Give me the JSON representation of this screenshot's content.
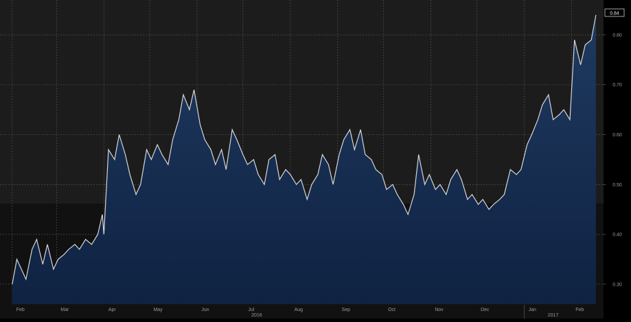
{
  "chart_data": {
    "type": "area",
    "title": "",
    "xlabel": "",
    "ylabel": "",
    "ylim": [
      0.26,
      0.87
    ],
    "grid": true,
    "yticks": [
      0.3,
      0.4,
      0.5,
      0.6,
      0.7,
      0.8
    ],
    "ytick_labels": [
      "0.30",
      "0.40",
      "0.50",
      "0.60",
      "0.70",
      "0.80"
    ],
    "last_value_label": "0.84",
    "last_value": 0.84,
    "month_labels": [
      "Feb",
      "Mar",
      "Apr",
      "May",
      "Jun",
      "Jul",
      "Aug",
      "Sep",
      "Oct",
      "Nov",
      "Dec",
      "Jan",
      "Feb"
    ],
    "year_labels": [
      "2016",
      "2017"
    ],
    "series": [
      {
        "x": [
          "2016-02-01",
          "2016-02-04",
          "2016-02-07",
          "2016-02-10",
          "2016-02-14",
          "2016-02-17",
          "2016-02-21",
          "2016-02-24",
          "2016-02-28",
          "2016-03-02",
          "2016-03-06",
          "2016-03-09",
          "2016-03-13",
          "2016-03-16",
          "2016-03-20",
          "2016-03-24",
          "2016-03-28",
          "2016-03-31",
          "2016-04-01",
          "2016-04-04",
          "2016-04-08",
          "2016-04-11",
          "2016-04-15",
          "2016-04-18",
          "2016-04-22",
          "2016-04-25",
          "2016-04-29",
          "2016-05-02",
          "2016-05-06",
          "2016-05-09",
          "2016-05-13",
          "2016-05-16",
          "2016-05-20",
          "2016-05-23",
          "2016-05-27",
          "2016-05-30",
          "2016-06-03",
          "2016-06-06",
          "2016-06-10",
          "2016-06-13",
          "2016-06-17",
          "2016-06-20",
          "2016-06-24",
          "2016-06-27",
          "2016-07-01",
          "2016-07-04",
          "2016-07-08",
          "2016-07-11",
          "2016-07-15",
          "2016-07-18",
          "2016-07-22",
          "2016-07-25",
          "2016-07-29",
          "2016-08-01",
          "2016-08-05",
          "2016-08-08",
          "2016-08-12",
          "2016-08-15",
          "2016-08-19",
          "2016-08-22",
          "2016-08-26",
          "2016-08-29",
          "2016-09-02",
          "2016-09-05",
          "2016-09-09",
          "2016-09-12",
          "2016-09-16",
          "2016-09-19",
          "2016-09-23",
          "2016-09-26",
          "2016-09-30",
          "2016-10-03",
          "2016-10-07",
          "2016-10-10",
          "2016-10-14",
          "2016-10-17",
          "2016-10-21",
          "2016-10-24",
          "2016-10-28",
          "2016-10-31",
          "2016-11-04",
          "2016-11-07",
          "2016-11-11",
          "2016-11-14",
          "2016-11-18",
          "2016-11-21",
          "2016-11-25",
          "2016-11-28",
          "2016-12-02",
          "2016-12-05",
          "2016-12-09",
          "2016-12-12",
          "2016-12-16",
          "2016-12-19",
          "2016-12-23",
          "2016-12-27",
          "2016-12-30",
          "2017-01-03",
          "2017-01-06",
          "2017-01-10",
          "2017-01-13",
          "2017-01-17",
          "2017-01-20",
          "2017-01-24",
          "2017-01-27",
          "2017-01-31",
          "2017-02-03",
          "2017-02-07",
          "2017-02-10",
          "2017-02-14",
          "2017-02-17"
        ],
        "values": [
          0.3,
          0.35,
          0.33,
          0.31,
          0.37,
          0.39,
          0.34,
          0.38,
          0.33,
          0.35,
          0.36,
          0.37,
          0.38,
          0.37,
          0.39,
          0.38,
          0.4,
          0.44,
          0.4,
          0.57,
          0.55,
          0.6,
          0.56,
          0.52,
          0.48,
          0.5,
          0.57,
          0.55,
          0.58,
          0.56,
          0.54,
          0.59,
          0.63,
          0.68,
          0.65,
          0.69,
          0.62,
          0.59,
          0.57,
          0.54,
          0.57,
          0.53,
          0.61,
          0.59,
          0.56,
          0.54,
          0.55,
          0.52,
          0.5,
          0.55,
          0.56,
          0.51,
          0.53,
          0.52,
          0.5,
          0.51,
          0.47,
          0.5,
          0.52,
          0.56,
          0.54,
          0.5,
          0.56,
          0.59,
          0.61,
          0.57,
          0.61,
          0.56,
          0.55,
          0.53,
          0.52,
          0.49,
          0.5,
          0.48,
          0.46,
          0.44,
          0.48,
          0.56,
          0.5,
          0.52,
          0.49,
          0.5,
          0.48,
          0.51,
          0.53,
          0.51,
          0.47,
          0.48,
          0.46,
          0.47,
          0.45,
          0.46,
          0.47,
          0.48,
          0.53,
          0.52,
          0.53,
          0.58,
          0.6,
          0.63,
          0.66,
          0.68,
          0.63,
          0.64,
          0.65,
          0.63,
          0.79,
          0.74,
          0.78,
          0.79,
          0.84
        ]
      }
    ]
  }
}
